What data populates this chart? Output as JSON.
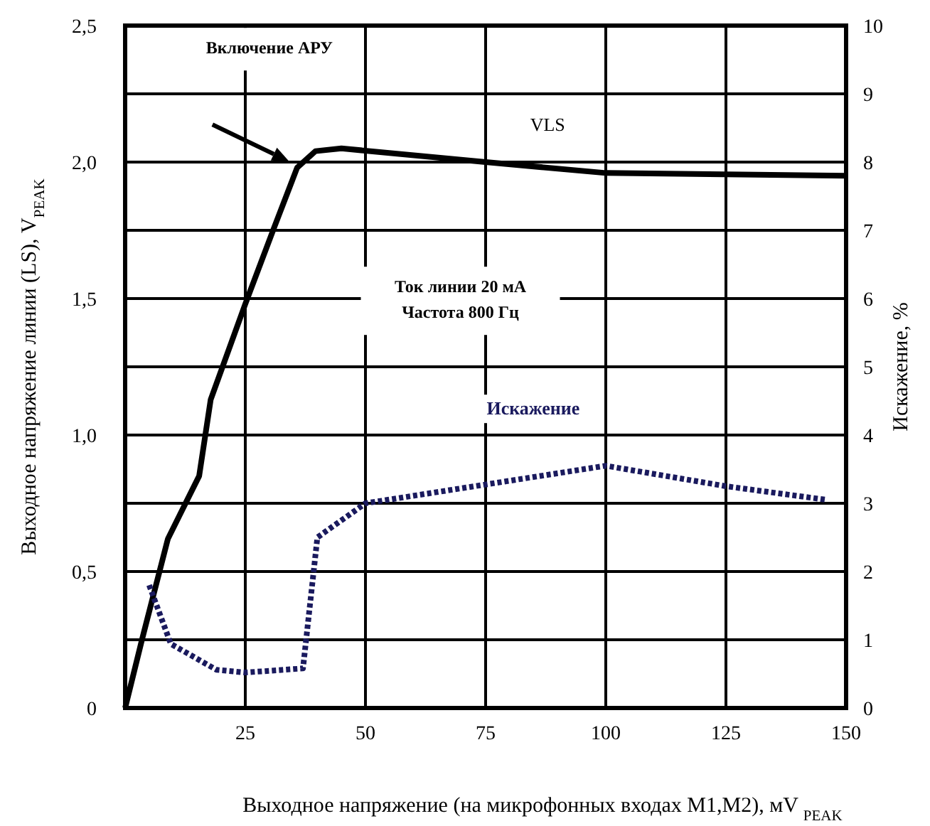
{
  "chart_data": {
    "type": "line",
    "xlabel": "Выходное напряжение (на микрофонных входах M1,M2), мV $_{PEAK}$",
    "ylabel": "Выходное напряжение линии (LS), V$_{PEAK}$",
    "y2label": "Искажение, %",
    "xlim": [
      0,
      150
    ],
    "xticks": [
      25,
      50,
      75,
      100,
      125,
      150
    ],
    "ylim": [
      0,
      2.5
    ],
    "yticks": [
      0,
      {
        "value": 0.5,
        "label": "0,5"
      },
      {
        "value": 1,
        "label": "1,0"
      },
      {
        "value": 1.5,
        "label": "1,5"
      },
      {
        "value": 2,
        "label": "2,0"
      },
      {
        "value": 2.5,
        "label": "2,5"
      }
    ],
    "y2lim": [
      0,
      10
    ],
    "y2ticks": [
      0,
      1,
      2,
      3,
      4,
      5,
      6,
      7,
      8,
      9,
      10
    ],
    "grid": true,
    "marker": "none",
    "series": [
      {
        "name": "VLS",
        "color": "#000000",
        "line_style": "solid",
        "x": [
          0,
          3.5,
          8.9,
          15.4,
          17.8,
          25,
          31,
          35.8,
          39.6,
          45,
          75,
          100,
          125,
          150
        ],
        "values": [
          0,
          0.25,
          0.62,
          0.85,
          1.13,
          1.48,
          1.76,
          1.98,
          2.04,
          2.05,
          2,
          1.96,
          1.955,
          1.95
        ]
      },
      {
        "name": "Искажение",
        "color": "#1a1a5e",
        "line_style": "dotted",
        "axis": "y2",
        "x": [
          5,
          9.5,
          19,
          25,
          37,
          40,
          50,
          100,
          125,
          146
        ],
        "values": [
          1.8,
          0.94,
          0.56,
          0.52,
          0.58,
          2.5,
          3,
          3.55,
          3.25,
          3.05
        ]
      }
    ],
    "annotations": [
      "Включение АРУ",
      "Ток линии 20 мА\nЧастота 800 Гц"
    ]
  }
}
